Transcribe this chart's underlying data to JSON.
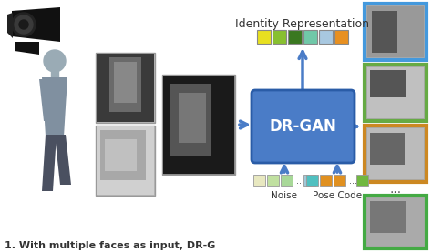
{
  "title": "Identity Representation",
  "drgan_label": "DR-GAN",
  "noise_label": "Noise",
  "pose_code_label": "Pose Code",
  "bg_color": "#ffffff",
  "drgan_box_color": "#4a7cc7",
  "identity_colors": [
    "#e8e020",
    "#88c030",
    "#3a7820",
    "#70c8a8",
    "#a8c8e0",
    "#e89020"
  ],
  "noise_colors_list": [
    "#e8e8c0",
    "#c0e0a0",
    "#a8d898"
  ],
  "noise_last_color": "#a0c8d8",
  "pose_colors_list": [
    "#50c0c0",
    "#e09020",
    "#e09020"
  ],
  "pose_last_color": "#70b840",
  "arrow_color": "#4a7cc7",
  "border_blue": "#4499dd",
  "border_green1": "#66aa44",
  "border_orange": "#cc8822",
  "border_green2": "#44aa44",
  "face_bg_dark": "#555555",
  "face_bg_mid": "#888888",
  "face_bg_light": "#cccccc",
  "figsize": [
    4.74,
    2.77
  ],
  "dpi": 100,
  "bottom_text": "1. With multiple faces as input, DR-G",
  "bottom_text_color": "#333333",
  "cam_color": "#111111",
  "cam_lens": "#333333",
  "cam_mount": "#111111"
}
